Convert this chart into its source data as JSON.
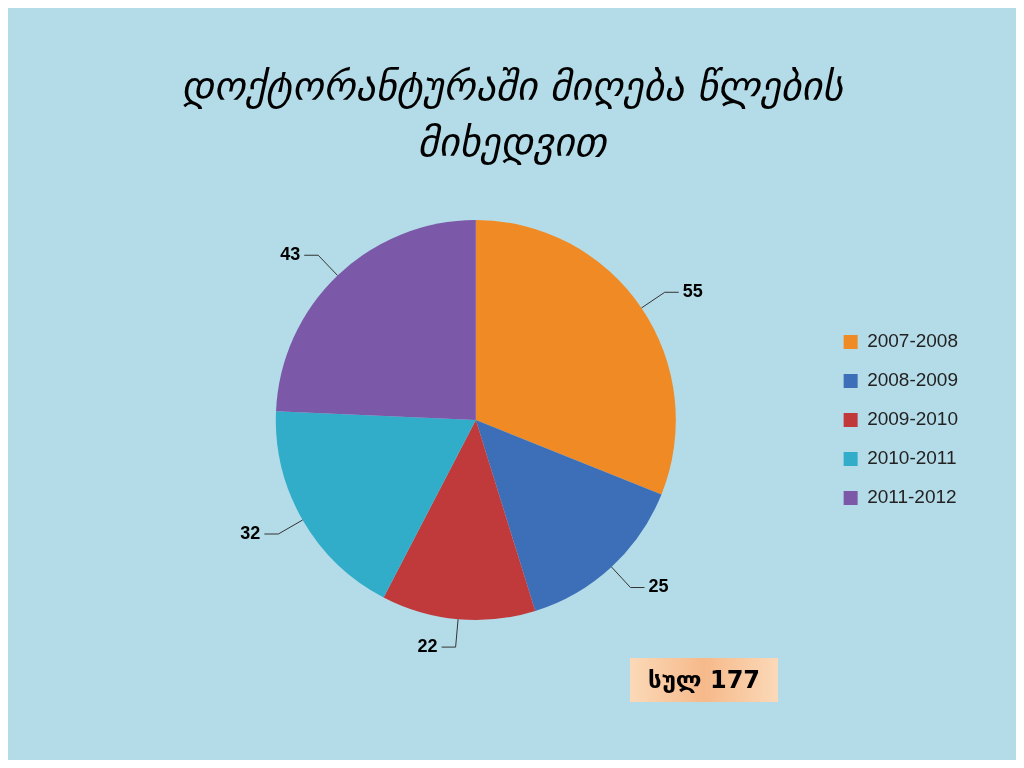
{
  "chart_data": {
    "type": "pie",
    "title": "დოქტორანტურაში მიღება წლების მიხედვით",
    "categories": [
      "2007-2008",
      "2008-2009",
      "2009-2010",
      "2010-2011",
      "2011-2012"
    ],
    "values": [
      55,
      25,
      22,
      32,
      43
    ],
    "colors": [
      "#f08a24",
      "#3d6fb8",
      "#c0393b",
      "#31adc9",
      "#7b58a8"
    ],
    "data_labels": true,
    "legend": "right",
    "annotations": [
      "სულ 177"
    ]
  }
}
